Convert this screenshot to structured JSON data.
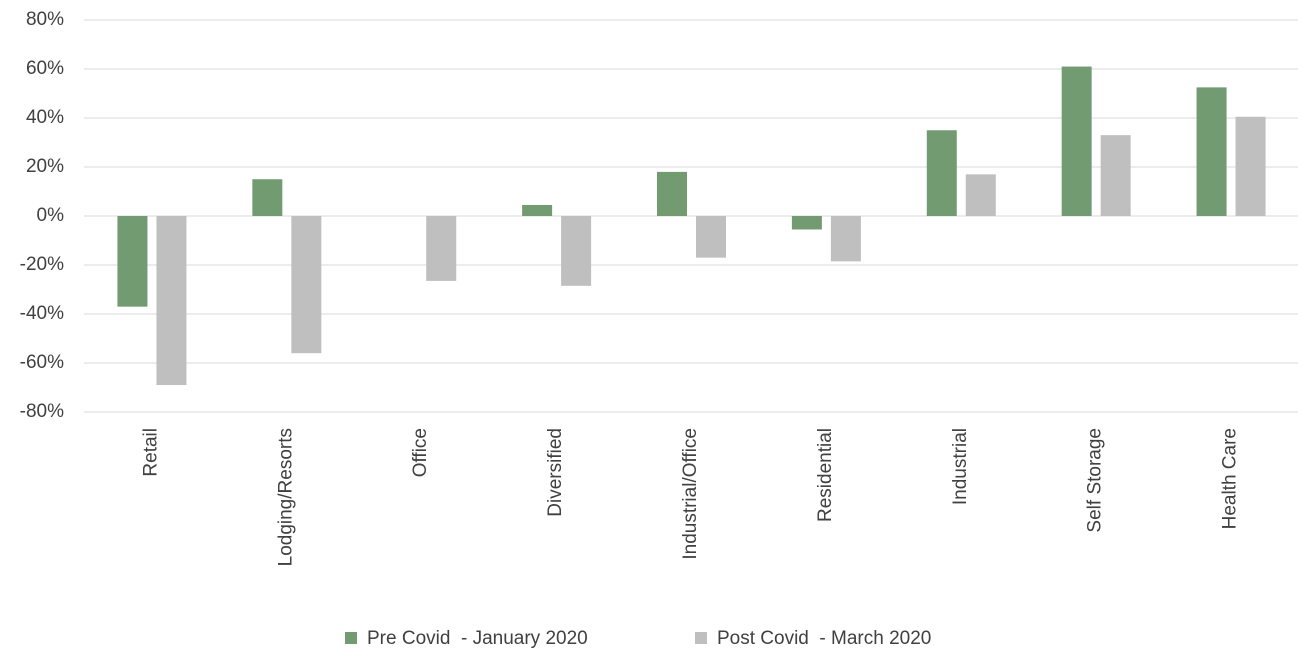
{
  "chart_data": {
    "type": "bar",
    "categories": [
      "Retail",
      "Lodging/Resorts",
      "Office",
      "Diversified",
      "Industrial/Office",
      "Residential",
      "Industrial",
      "Self Storage",
      "Health Care"
    ],
    "series": [
      {
        "name": "Pre Covid  - January 2020",
        "color": "#729b72",
        "values": [
          -37,
          15,
          0,
          4.5,
          18,
          -5.5,
          35,
          61,
          52.5
        ]
      },
      {
        "name": "Post Covid  - March 2020",
        "color": "#bfbfbf",
        "values": [
          -69,
          -56,
          -26.5,
          -28.5,
          -17,
          -18.5,
          17,
          33,
          40.5
        ]
      }
    ],
    "ylim": [
      -80,
      80
    ],
    "yticks": [
      {
        "value": -80,
        "label": "-80%"
      },
      {
        "value": -60,
        "label": "-60%"
      },
      {
        "value": -40,
        "label": "-40%"
      },
      {
        "value": -20,
        "label": "-20%"
      },
      {
        "value": 0,
        "label": "0%"
      },
      {
        "value": 20,
        "label": "20%"
      },
      {
        "value": 40,
        "label": "40%"
      },
      {
        "value": 60,
        "label": "60%"
      },
      {
        "value": 80,
        "label": "80%"
      }
    ],
    "grid": true,
    "legend": "bottom"
  }
}
